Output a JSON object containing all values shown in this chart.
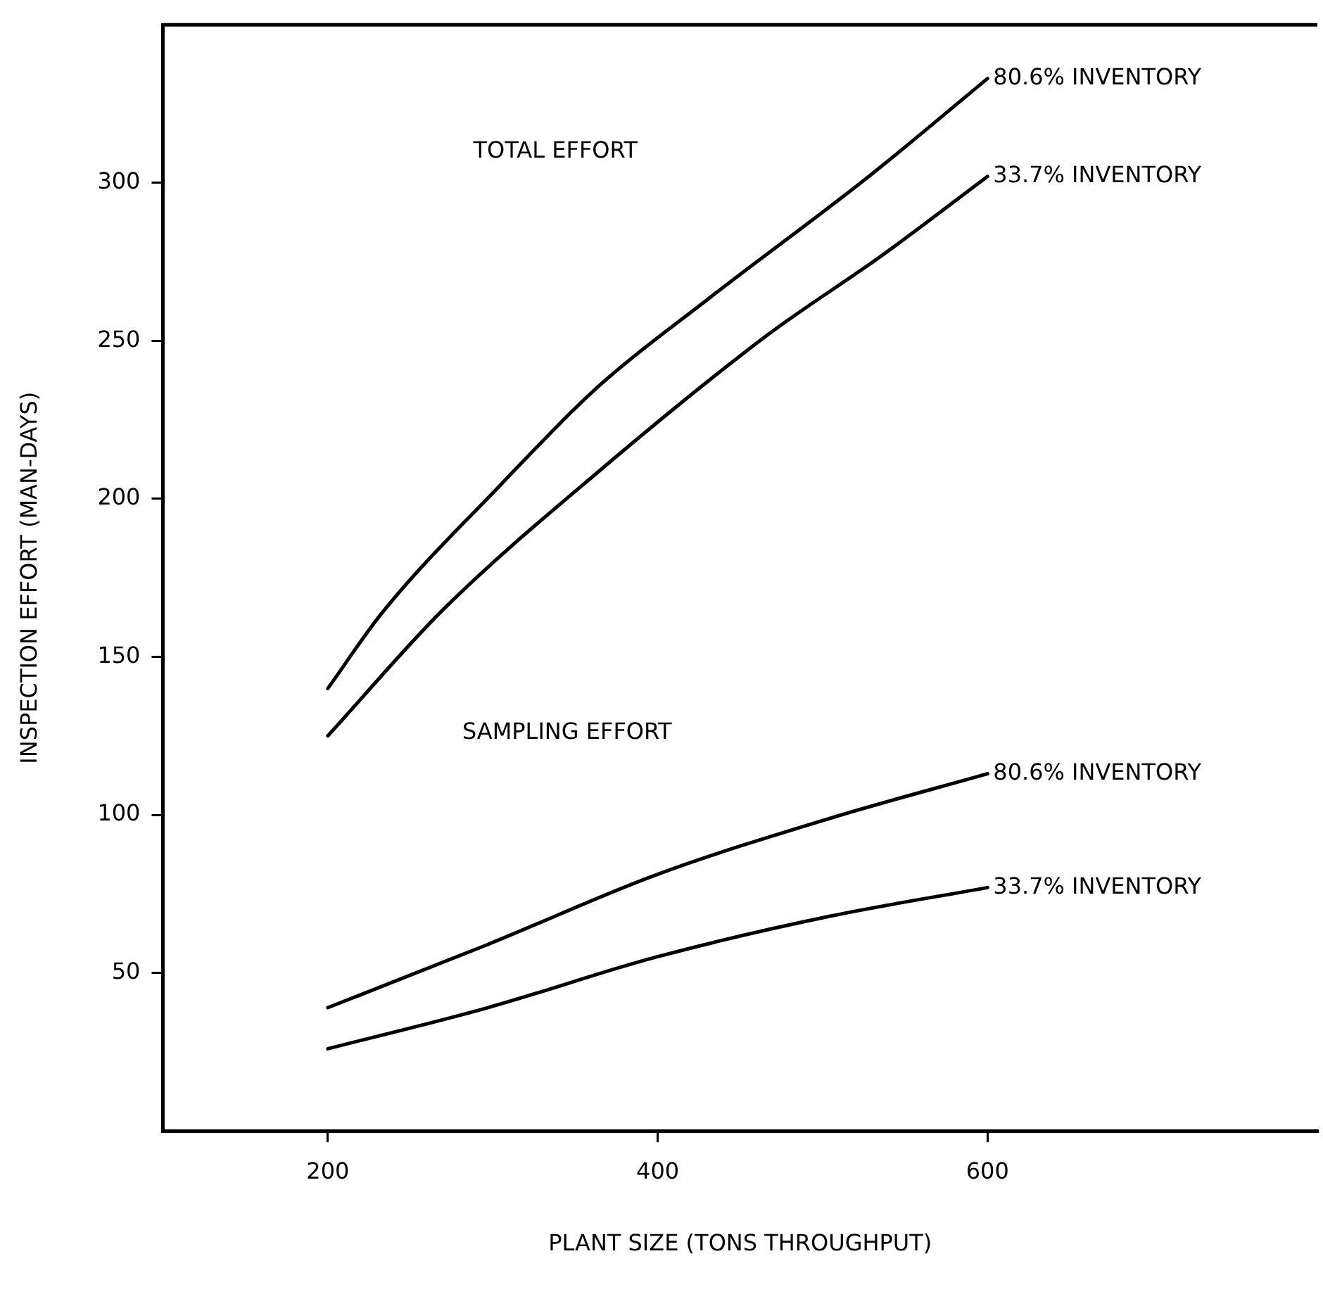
{
  "chart_data": {
    "type": "line",
    "xlabel": "PLANT SIZE (TONS THROUGHPUT)",
    "ylabel": "INSPECTION EFFORT (MAN-DAYS)",
    "xlim": [
      100,
      800
    ],
    "xticks": [
      200,
      400,
      600
    ],
    "ylim": [
      0,
      350
    ],
    "yticks": [
      50,
      100,
      150,
      200,
      250,
      300
    ],
    "grid": false,
    "legend": false,
    "marker": "none",
    "line_style": "solid",
    "series": [
      {
        "name": "80.6% INVENTORY",
        "color": "#000000",
        "x": [
          200,
          233,
          304,
          365,
          430,
          528,
          600
        ],
        "values": [
          140,
          164,
          204,
          236,
          263,
          302,
          333
        ]
      },
      {
        "name": "33.7% INVENTORY",
        "color": "#000000",
        "x": [
          200,
          270,
          365,
          467,
          536,
          600
        ],
        "values": [
          125,
          165,
          209,
          252,
          277,
          302
        ]
      },
      {
        "name": "80.6% INVENTORY",
        "color": "#000000",
        "x": [
          200,
          297,
          399,
          505,
          600
        ],
        "values": [
          39,
          59,
          81,
          99,
          113
        ]
      },
      {
        "name": "33.7% INVENTORY",
        "color": "#000000",
        "x": [
          200,
          297,
          399,
          505,
          600
        ],
        "values": [
          26,
          39,
          55,
          68,
          77
        ]
      }
    ],
    "annotations": [
      "TOTAL EFFORT",
      "SAMPLING EFFORT"
    ]
  }
}
